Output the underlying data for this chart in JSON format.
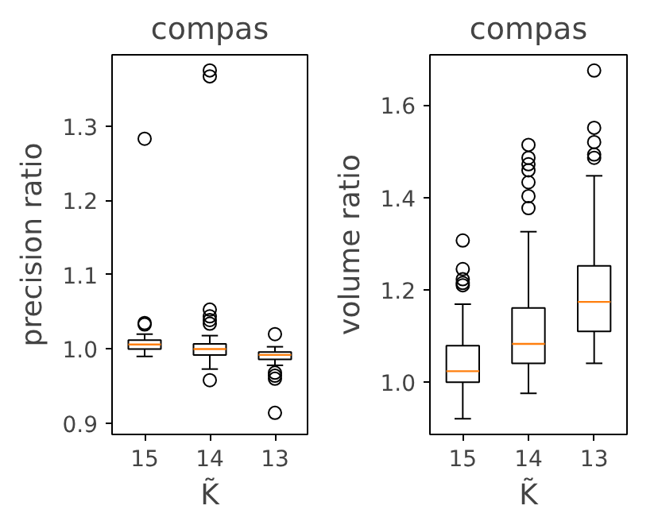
{
  "chart_data": [
    {
      "type": "box",
      "title": "compas",
      "xlabel": "K̃",
      "ylabel": "precision ratio",
      "categories": [
        "15",
        "14",
        "13"
      ],
      "ylim": [
        0.885,
        1.396
      ],
      "yticks": [
        {
          "value": 0.9,
          "label": "0.9"
        },
        {
          "value": 1.0,
          "label": "1.0"
        },
        {
          "value": 1.1,
          "label": "1.1"
        },
        {
          "value": 1.2,
          "label": "1.2"
        },
        {
          "value": 1.3,
          "label": "1.3"
        }
      ],
      "grid": false,
      "boxes": [
        {
          "low": 0.99,
          "q1": 1.0,
          "median": 1.006,
          "q3": 1.012,
          "high": 1.02,
          "outliers": [
            1.283,
            1.035,
            1.033
          ]
        },
        {
          "low": 0.973,
          "q1": 0.992,
          "median": 1.0,
          "q3": 1.007,
          "high": 1.018,
          "outliers": [
            1.375,
            1.367,
            1.053,
            1.044,
            1.039,
            1.034,
            0.958
          ]
        },
        {
          "low": 0.978,
          "q1": 0.986,
          "median": 0.992,
          "q3": 0.996,
          "high": 1.003,
          "outliers": [
            1.02,
            0.968,
            0.964,
            0.96,
            0.914
          ]
        }
      ]
    },
    {
      "type": "box",
      "title": "compas",
      "xlabel": "K̃",
      "ylabel": "volume ratio",
      "categories": [
        "15",
        "14",
        "13"
      ],
      "ylim": [
        0.887,
        1.709
      ],
      "yticks": [
        {
          "value": 1.0,
          "label": "1.0"
        },
        {
          "value": 1.2,
          "label": "1.2"
        },
        {
          "value": 1.4,
          "label": "1.4"
        },
        {
          "value": 1.6,
          "label": "1.6"
        }
      ],
      "grid": false,
      "boxes": [
        {
          "low": 0.921,
          "q1": 1.0,
          "median": 1.024,
          "q3": 1.079,
          "high": 1.169,
          "outliers": [
            1.307,
            1.245,
            1.223,
            1.215,
            1.21
          ]
        },
        {
          "low": 0.976,
          "q1": 1.041,
          "median": 1.083,
          "q3": 1.161,
          "high": 1.326,
          "outliers": [
            1.377,
            1.403,
            1.433,
            1.459,
            1.472,
            1.486,
            1.514
          ]
        },
        {
          "low": 1.041,
          "q1": 1.11,
          "median": 1.174,
          "q3": 1.252,
          "high": 1.447,
          "outliers": [
            1.486,
            1.493,
            1.52,
            1.551,
            1.675
          ]
        }
      ]
    }
  ]
}
